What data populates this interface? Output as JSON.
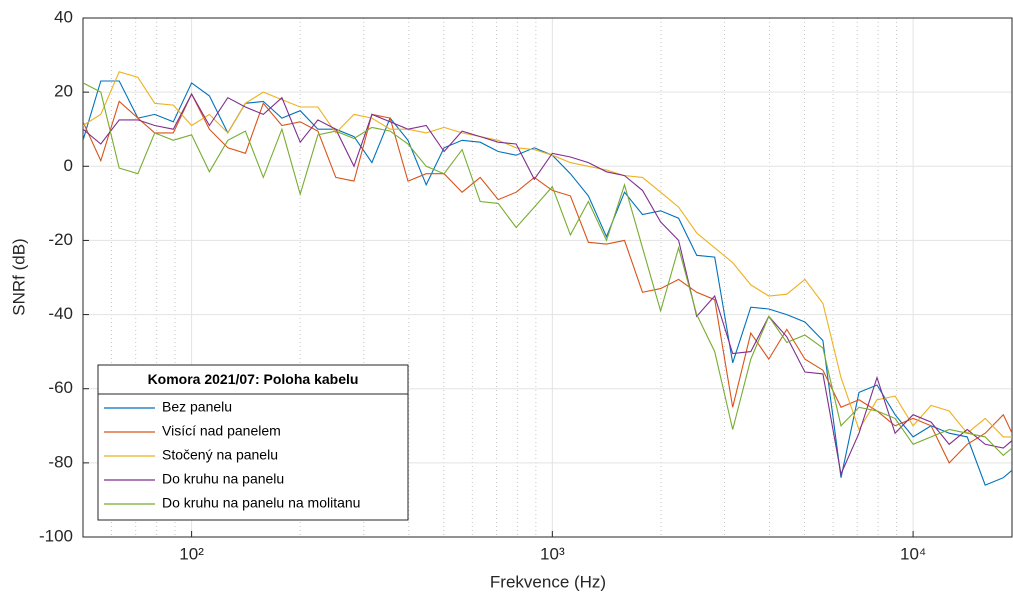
{
  "chart_data": {
    "type": "line",
    "log_x": true,
    "grid": true,
    "minor_grid": true,
    "legend": "southwest",
    "xlabel": "Frekvence (Hz)",
    "ylabel": "SNRf (dB)",
    "legend_title": "Komora 2021/07: Poloha kabelu",
    "xlim": [
      50,
      18800
    ],
    "ylim": [
      -100,
      40
    ],
    "xticks": [
      {
        "value": 100,
        "label": "10²"
      },
      {
        "value": 1000,
        "label": "10³"
      },
      {
        "value": 10000,
        "label": "10⁴"
      }
    ],
    "xminorticks": [
      60,
      70,
      80,
      90,
      200,
      300,
      400,
      500,
      600,
      700,
      800,
      900,
      2000,
      3000,
      4000,
      5000,
      6000,
      7000,
      8000,
      9000
    ],
    "yticks": [
      -100,
      -80,
      -60,
      -40,
      -20,
      0,
      20,
      40
    ],
    "x": [
      50,
      56,
      63,
      71,
      79,
      89,
      100,
      112,
      126,
      141,
      158,
      178,
      200,
      224,
      251,
      282,
      316,
      355,
      398,
      447,
      501,
      562,
      631,
      708,
      794,
      891,
      1000,
      1122,
      1259,
      1413,
      1585,
      1778,
      1995,
      2239,
      2512,
      2818,
      3162,
      3548,
      3981,
      4467,
      5012,
      5623,
      6310,
      7079,
      7943,
      8913,
      10000,
      11220,
      12589,
      14125,
      15849,
      17783,
      18800
    ],
    "series": [
      {
        "name": "Bez panelu",
        "color": "#0072bd",
        "values": [
          7,
          23,
          23,
          13,
          14,
          12,
          22.5,
          19,
          9,
          17,
          17.5,
          13,
          15,
          10,
          10,
          8,
          1,
          13,
          7,
          -5,
          5,
          7,
          6.5,
          4,
          3,
          5,
          3,
          -2,
          -8,
          -19,
          -7,
          -13,
          -12,
          -14,
          -24,
          -24.5,
          -53,
          -38,
          -38.5,
          -40,
          -42,
          -47,
          -84,
          -61,
          -59,
          -67,
          -73,
          -70,
          -72,
          -73,
          -86,
          -84,
          -82
        ]
      },
      {
        "name": "Visící nad panelem",
        "color": "#d95319",
        "values": [
          12,
          1.5,
          17.5,
          13,
          9,
          9,
          19.5,
          10,
          5,
          3.5,
          17,
          11,
          12,
          9.5,
          -3,
          -4,
          14,
          13,
          -4,
          -2,
          -2,
          -7,
          -3,
          -9,
          -7,
          -3,
          -6.5,
          -8,
          -20.5,
          -21,
          -20,
          -34,
          -33,
          -30.5,
          -34,
          -36,
          -65,
          -45,
          -52,
          -44,
          -52,
          -55,
          -65,
          -63,
          -66,
          -70,
          -68,
          -70,
          -80,
          -75,
          -72,
          -67,
          -72
        ]
      },
      {
        "name": "Stočený na panelu",
        "color": "#edb120",
        "values": [
          11,
          14,
          25.5,
          24,
          17,
          16.5,
          11,
          14,
          9,
          17,
          20,
          18,
          16,
          16,
          9,
          14,
          13,
          10,
          10,
          9,
          10.5,
          9,
          8,
          7,
          5,
          4.5,
          3,
          1,
          0,
          -1,
          -2.5,
          -3,
          -7,
          -11,
          -18,
          -22,
          -26,
          -32,
          -35,
          -34.5,
          -30.5,
          -37,
          -57,
          -71,
          -63,
          -62,
          -70,
          -64.5,
          -66,
          -72,
          -68,
          -73,
          -73
        ]
      },
      {
        "name": "Do kruhu na panelu",
        "color": "#7e2f8e",
        "values": [
          10,
          6,
          12.5,
          12.5,
          11,
          10,
          19.5,
          11,
          18.5,
          16,
          14,
          18.5,
          6.5,
          12.5,
          10,
          0,
          14,
          12,
          10,
          11,
          4,
          9.5,
          8,
          6.5,
          6,
          -3.5,
          3.5,
          2.5,
          1,
          -1.5,
          -2.5,
          -6.5,
          -15,
          -20,
          -40.5,
          -35,
          -50.5,
          -50,
          -40.5,
          -46,
          -55.5,
          -56,
          -83,
          -72,
          -57,
          -72,
          -67,
          -69,
          -75,
          -71,
          -75,
          -76,
          -74
        ]
      },
      {
        "name": "Do kruhu na panelu na molitanu",
        "color": "#77ac30",
        "values": [
          22.5,
          20,
          -0.5,
          -2,
          9,
          7,
          8.5,
          -1.5,
          7,
          9.5,
          -3,
          10,
          -7.5,
          8.5,
          9.5,
          7.5,
          10.5,
          9.5,
          6,
          0,
          -2,
          4.5,
          -9.5,
          -10,
          -16.5,
          -11,
          -5.5,
          -18.5,
          -9.5,
          -20,
          -5,
          -22,
          -39,
          -22,
          -40,
          -50,
          -71,
          -52,
          -40.5,
          -47.5,
          -45.5,
          -49,
          -70,
          -65,
          -66,
          -68,
          -75,
          -73,
          -71,
          -72,
          -73,
          -78,
          -76
        ]
      }
    ]
  }
}
